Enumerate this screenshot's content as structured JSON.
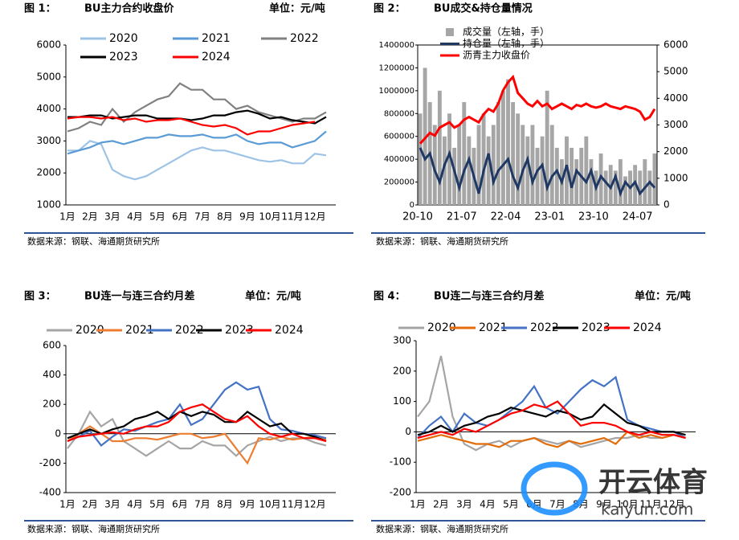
{
  "chart_data": [
    {
      "type": "line",
      "figure_label": "图 1：",
      "title": "BU主力合约收盘价",
      "unit": "单位：元/吨",
      "source": "数据来源：钢联、海通期货研究所",
      "categories": [
        "1月",
        null,
        "2月",
        null,
        "3月",
        null,
        "4月",
        null,
        "5月",
        null,
        "6月",
        null,
        "7月",
        null,
        "8月",
        null,
        "9月",
        null,
        "10月",
        null,
        "11月",
        null,
        "12月",
        null
      ],
      "ylim": [
        1000,
        6000
      ],
      "yticks": [
        1000,
        2000,
        3000,
        4000,
        5000,
        6000
      ],
      "series": [
        {
          "name": "2020",
          "color": "#9dc3e6",
          "values": [
            2700,
            2700,
            3000,
            2900,
            2100,
            1900,
            1800,
            1900,
            2100,
            2300,
            2500,
            2700,
            2800,
            2700,
            2700,
            2600,
            2500,
            2400,
            2350,
            2400,
            2300,
            2300,
            2600,
            2550
          ]
        },
        {
          "name": "2021",
          "color": "#5b9bd5",
          "values": [
            2600,
            2700,
            2800,
            2950,
            3000,
            2900,
            3000,
            3100,
            3100,
            3200,
            3150,
            3150,
            3200,
            3100,
            3100,
            3200,
            3000,
            2900,
            2950,
            2950,
            2800,
            2900,
            3000,
            3300
          ]
        },
        {
          "name": "2022",
          "color": "#808080",
          "values": [
            3300,
            3400,
            3600,
            3500,
            4000,
            3600,
            3900,
            4100,
            4300,
            4400,
            4800,
            4600,
            4600,
            4300,
            4300,
            4000,
            4100,
            3900,
            3800,
            3700,
            3600,
            3700,
            3700,
            3900
          ]
        },
        {
          "name": "2023",
          "color": "#000000",
          "values": [
            3750,
            3750,
            3800,
            3800,
            3700,
            3750,
            3800,
            3800,
            3700,
            3700,
            3700,
            3650,
            3700,
            3800,
            3800,
            3900,
            3950,
            3850,
            3700,
            3750,
            3650,
            3600,
            3550,
            3750
          ]
        },
        {
          "name": "2024",
          "color": "#ff0000",
          "values": [
            3700,
            3750,
            3750,
            3700,
            3750,
            3650,
            3700,
            3600,
            3650,
            3650,
            3700,
            3600,
            3500,
            3450,
            3500,
            3400,
            3200,
            3300,
            3300,
            3400,
            3500,
            3550,
            3600,
            null
          ]
        }
      ]
    },
    {
      "type": "bar_line",
      "figure_label": "图 2：",
      "title": "BU成交&持仓量情况",
      "source": "数据来源：钢联、海通期货研究所",
      "categories": [
        "20-10",
        null,
        null,
        null,
        null,
        null,
        null,
        null,
        null,
        "21-07",
        null,
        null,
        null,
        null,
        null,
        null,
        null,
        null,
        "22-04",
        null,
        null,
        null,
        null,
        null,
        null,
        null,
        null,
        "23-01",
        null,
        null,
        null,
        null,
        null,
        null,
        null,
        null,
        "23-10",
        null,
        null,
        null,
        null,
        null,
        null,
        null,
        null,
        "24-07",
        null,
        null,
        null
      ],
      "ylim": [
        0,
        1400000
      ],
      "yticks": [
        0,
        200000,
        400000,
        600000,
        800000,
        1000000,
        1200000,
        1400000
      ],
      "y2lim": [
        0,
        6000
      ],
      "y2ticks": [
        0,
        1000,
        2000,
        3000,
        4000,
        5000,
        6000
      ],
      "series": [
        {
          "name": "成交量（左轴，手）",
          "color": "#a6a6a6",
          "kind": "bar",
          "values": [
            800000,
            1200000,
            900000,
            700000,
            1000000,
            600000,
            800000,
            500000,
            700000,
            900000,
            600000,
            500000,
            700000,
            800000,
            600000,
            700000,
            900000,
            1000000,
            1100000,
            900000,
            800000,
            700000,
            600000,
            700000,
            500000,
            600000,
            1000000,
            700000,
            500000,
            400000,
            600000,
            500000,
            400000,
            500000,
            600000,
            400000,
            300000,
            450000,
            300000,
            350000,
            300000,
            400000,
            250000,
            300000,
            350000,
            300000,
            400000,
            300000,
            450000
          ]
        },
        {
          "name": "持仓量（左轴，手）",
          "color": "#1f3864",
          "kind": "line",
          "values": [
            500000,
            400000,
            450000,
            300000,
            200000,
            350000,
            450000,
            300000,
            150000,
            300000,
            400000,
            250000,
            100000,
            300000,
            450000,
            200000,
            300000,
            350000,
            400000,
            250000,
            150000,
            300000,
            400000,
            200000,
            300000,
            350000,
            150000,
            250000,
            300000,
            200000,
            350000,
            150000,
            300000,
            250000,
            200000,
            300000,
            150000,
            250000,
            200000,
            150000,
            250000,
            100000,
            200000,
            150000,
            200000,
            100000,
            150000,
            200000,
            150000
          ]
        },
        {
          "name": "沥青主力收盘价",
          "color": "#ff0000",
          "kind": "line",
          "axis": "y2",
          "values": [
            2300,
            2500,
            2700,
            2600,
            2900,
            3000,
            3100,
            2900,
            3000,
            3200,
            3300,
            3200,
            3100,
            3400,
            3600,
            3500,
            3800,
            4300,
            4600,
            4800,
            4200,
            4000,
            3800,
            3700,
            3900,
            3700,
            3800,
            3600,
            3700,
            3800,
            3700,
            3600,
            3750,
            3700,
            3800,
            3700,
            3650,
            3700,
            3800,
            3700,
            3650,
            3600,
            3700,
            3650,
            3600,
            3500,
            3200,
            3300,
            3600
          ]
        }
      ]
    },
    {
      "type": "line",
      "figure_label": "图 3：",
      "title": "BU连一与连三合约月差",
      "unit": "单位：元/吨",
      "source": "数据来源：钢联、海通期货研究所",
      "categories": [
        "1月",
        null,
        "2月",
        null,
        "3月",
        null,
        "4月",
        null,
        "5月",
        null,
        "6月",
        null,
        "7月",
        null,
        "8月",
        null,
        "9月",
        null,
        "10月",
        null,
        "11月",
        null,
        "12月",
        null
      ],
      "ylim": [
        -400,
        600
      ],
      "yticks": [
        -400,
        -200,
        0,
        200,
        400,
        600
      ],
      "series": [
        {
          "name": "2020",
          "color": "#a5a5a5",
          "values": [
            -100,
            0,
            150,
            50,
            100,
            -50,
            -100,
            -150,
            -100,
            -50,
            -100,
            -100,
            -50,
            -80,
            -80,
            -150,
            -80,
            -50,
            -20,
            -50,
            -30,
            -30,
            -60,
            -80
          ]
        },
        {
          "name": "2021",
          "color": "#ed7d31",
          "values": [
            -50,
            0,
            50,
            0,
            -50,
            -50,
            -30,
            -30,
            -40,
            -20,
            0,
            0,
            -30,
            -20,
            0,
            -100,
            -200,
            -30,
            -40,
            -20,
            -40,
            -30,
            -20,
            -40
          ]
        },
        {
          "name": "2022",
          "color": "#4472c4",
          "values": [
            -50,
            -20,
            20,
            -80,
            -20,
            30,
            20,
            50,
            80,
            100,
            200,
            60,
            100,
            200,
            300,
            350,
            300,
            320,
            100,
            30,
            20,
            0,
            -10,
            -30
          ]
        },
        {
          "name": "2023",
          "color": "#000000",
          "values": [
            -30,
            0,
            30,
            0,
            30,
            50,
            100,
            120,
            150,
            100,
            150,
            120,
            150,
            130,
            80,
            80,
            150,
            100,
            50,
            70,
            0,
            0,
            -20,
            -50
          ]
        },
        {
          "name": "2024",
          "color": "#ff0000",
          "values": [
            -50,
            -20,
            -10,
            0,
            10,
            0,
            30,
            50,
            50,
            80,
            150,
            180,
            200,
            150,
            100,
            80,
            120,
            50,
            0,
            -20,
            0,
            -30,
            -30,
            -50
          ]
        }
      ]
    },
    {
      "type": "line",
      "figure_label": "图 4：",
      "title": "BU连二与连三合约月差",
      "unit": "单位：元/吨",
      "source": "数据来源：钢联、海通期货研究所",
      "categories": [
        "1月",
        null,
        "2月",
        null,
        "3月",
        null,
        "4月",
        null,
        "5月",
        null,
        "6月",
        null,
        "7月",
        null,
        "8月",
        null,
        "9月",
        null,
        "10月",
        null,
        "11月",
        null,
        "12月",
        null
      ],
      "ylim": [
        -200,
        300
      ],
      "yticks": [
        -200,
        -100,
        0,
        100,
        200,
        300
      ],
      "series": [
        {
          "name": "2020",
          "color": "#a5a5a5",
          "values": [
            50,
            100,
            250,
            50,
            -40,
            -60,
            -40,
            -30,
            -50,
            -30,
            -20,
            -30,
            -40,
            -30,
            -50,
            -40,
            -30,
            -20,
            -20,
            -10,
            -20,
            -20,
            -10,
            -20
          ]
        },
        {
          "name": "2021",
          "color": "#e36c09",
          "values": [
            -30,
            -20,
            -10,
            -20,
            -30,
            -40,
            -40,
            -50,
            -30,
            -30,
            -20,
            -40,
            -50,
            -30,
            -40,
            -30,
            -20,
            -40,
            0,
            -20,
            -10,
            -20,
            -10,
            -20
          ]
        },
        {
          "name": "2022",
          "color": "#4472c4",
          "values": [
            -20,
            20,
            50,
            0,
            60,
            30,
            20,
            40,
            70,
            100,
            150,
            80,
            60,
            100,
            140,
            170,
            150,
            180,
            40,
            20,
            10,
            0,
            0,
            -20
          ]
        },
        {
          "name": "2023",
          "color": "#000000",
          "values": [
            -10,
            0,
            20,
            0,
            20,
            30,
            50,
            60,
            80,
            70,
            60,
            50,
            70,
            60,
            40,
            50,
            90,
            60,
            30,
            20,
            0,
            0,
            0,
            -10
          ]
        },
        {
          "name": "2024",
          "color": "#ff0000",
          "values": [
            -20,
            -10,
            0,
            -10,
            10,
            0,
            20,
            40,
            60,
            70,
            90,
            80,
            100,
            60,
            20,
            30,
            30,
            20,
            0,
            -10,
            0,
            -10,
            -10,
            -20
          ]
        }
      ]
    }
  ],
  "watermark": {
    "brand": "开云体育",
    "site": "kaiyun.com"
  }
}
